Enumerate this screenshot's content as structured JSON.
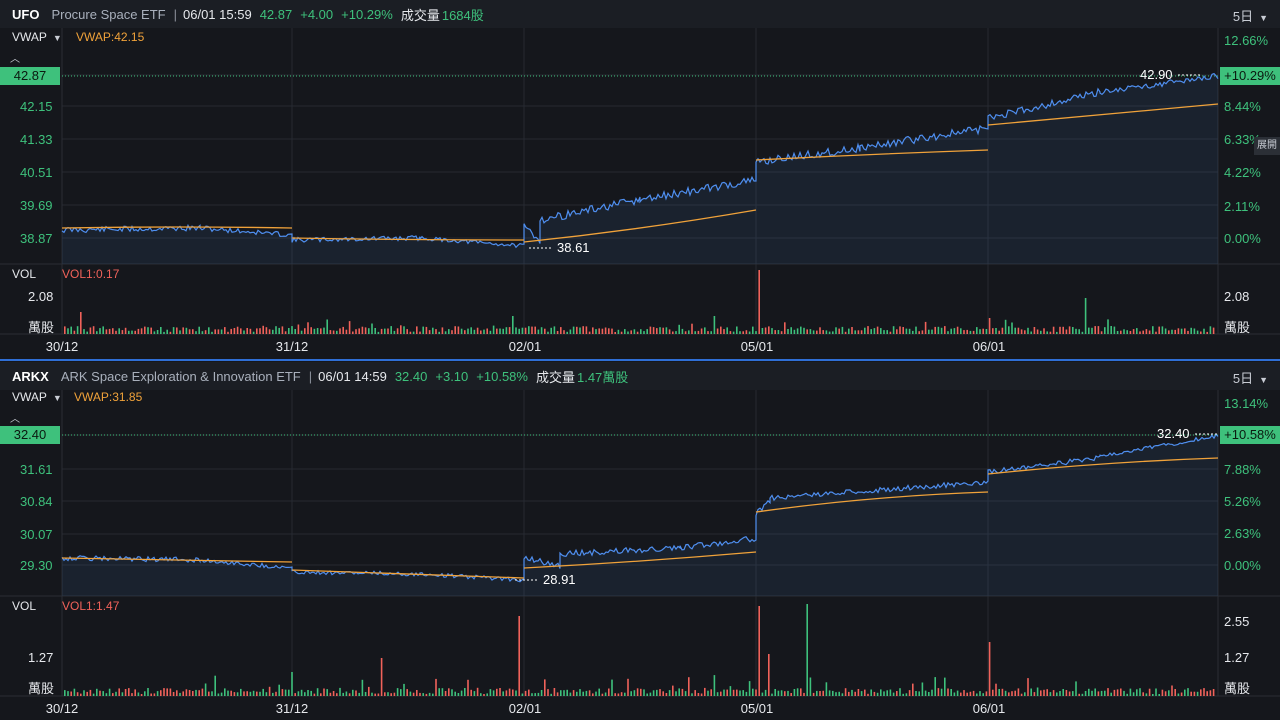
{
  "panels": [
    {
      "symbol": "UFO",
      "name": "Procure Space ETF",
      "sep": "|",
      "datetime": "06/01 15:59",
      "price": "42.87",
      "change": "+4.00",
      "change_pct": "+10.29%",
      "vol_label": "成交量",
      "vol_value": "1684股",
      "period": "5日",
      "vwap_selector": "VWAP",
      "vwap_value": "VWAP:42.15",
      "vol_selector": "VOL",
      "vol_ma": "VOL1:0.17",
      "price_ticks": [
        "38.87",
        "39.69",
        "40.51",
        "41.33",
        "42.15",
        "42.87"
      ],
      "pct_ticks": [
        "0.00%",
        "2.11%",
        "4.22%",
        "6.33%",
        "8.44%",
        "10.29%",
        "12.66%"
      ],
      "high_label": "42.90",
      "low_label": "38.61",
      "vol_ticks": [
        "2.08",
        "萬股"
      ],
      "dates": [
        "30/12",
        "31/12",
        "02/01",
        "05/01",
        "06/01"
      ],
      "expand_label": "展開"
    },
    {
      "symbol": "ARKX",
      "name": "ARK Space Exploration & Innovation ETF",
      "sep": "|",
      "datetime": "06/01 14:59",
      "price": "32.40",
      "change": "+3.10",
      "change_pct": "+10.58%",
      "vol_label": "成交量",
      "vol_value": "1.47萬股",
      "period": "5日",
      "vwap_selector": "VWAP",
      "vwap_value": "VWAP:31.85",
      "vol_selector": "VOL",
      "vol_ma": "VOL1:1.47",
      "price_ticks": [
        "29.30",
        "30.07",
        "30.84",
        "31.61",
        "32.40"
      ],
      "pct_ticks": [
        "0.00%",
        "2.63%",
        "5.26%",
        "7.88%",
        "10.58%",
        "13.14%"
      ],
      "high_label": "32.40",
      "low_label": "28.91",
      "vol_ticks_left": [
        "1.27",
        "萬股"
      ],
      "vol_ticks_right": [
        "2.55",
        "1.27",
        "萬股"
      ],
      "dates": [
        "30/12",
        "31/12",
        "02/01",
        "05/01",
        "06/01"
      ]
    }
  ],
  "colors": {
    "up": "#3ec17c",
    "down": "#f0625a",
    "line": "#4f8ff0",
    "vwap": "#f0a23a",
    "grid": "#262a31"
  },
  "chart_data": [
    {
      "type": "line",
      "symbol": "UFO",
      "x": [
        "30/12",
        "31/12",
        "02/01",
        "05/01",
        "06/01"
      ],
      "series": [
        {
          "name": "VWAP",
          "values": [
            38.95,
            38.9,
            39.0,
            40.6,
            42.15
          ]
        }
      ],
      "open_ref": 38.87,
      "last": 42.87
    },
    {
      "type": "line",
      "symbol": "ARKX",
      "x": [
        "30/12",
        "31/12",
        "02/01",
        "05/01",
        "06/01"
      ],
      "series": [
        {
          "name": "VWAP",
          "values": [
            29.5,
            29.35,
            29.5,
            31.1,
            31.85
          ]
        }
      ],
      "open_ref": 29.3,
      "last": 32.4
    }
  ]
}
